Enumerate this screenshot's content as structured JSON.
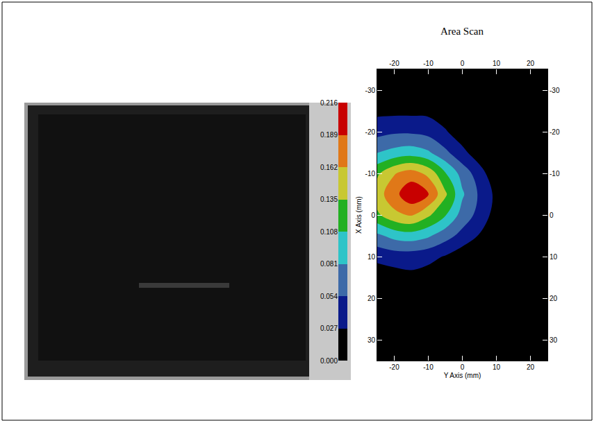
{
  "chart_data": {
    "type": "contour",
    "title": "Area Scan",
    "xlabel": "Y Axis (mm)",
    "ylabel": "X Axis (mm)",
    "x": [
      -25,
      -20,
      -15,
      -10,
      -5,
      0,
      5,
      10,
      15,
      20,
      25
    ],
    "y": [
      -35,
      -30,
      -25,
      -20,
      -15,
      -10,
      -5,
      0,
      5,
      10,
      15,
      20,
      25,
      30,
      35
    ],
    "z": [
      [
        0,
        0,
        0,
        0,
        0,
        0,
        0,
        0,
        0,
        0,
        0
      ],
      [
        0,
        0,
        0,
        0,
        0,
        0,
        0,
        0,
        0,
        0,
        0
      ],
      [
        0.02,
        0.02,
        0.02,
        0.02,
        0.01,
        0,
        0,
        0,
        0,
        0,
        0
      ],
      [
        0.045,
        0.05,
        0.05,
        0.045,
        0.03,
        0.01,
        0,
        0,
        0,
        0,
        0
      ],
      [
        0.08,
        0.09,
        0.095,
        0.085,
        0.06,
        0.035,
        0.01,
        0,
        0,
        0,
        0
      ],
      [
        0.13,
        0.16,
        0.175,
        0.155,
        0.11,
        0.07,
        0.04,
        0.005,
        0,
        0,
        0
      ],
      [
        0.15,
        0.18,
        0.21,
        0.19,
        0.14,
        0.085,
        0.05,
        0.02,
        0,
        0,
        0
      ],
      [
        0.13,
        0.155,
        0.165,
        0.14,
        0.11,
        0.07,
        0.045,
        0.015,
        0,
        0,
        0
      ],
      [
        0.075,
        0.09,
        0.095,
        0.085,
        0.065,
        0.045,
        0.025,
        0.005,
        0,
        0,
        0
      ],
      [
        0.035,
        0.04,
        0.04,
        0.035,
        0.025,
        0.01,
        0,
        0,
        0,
        0,
        0
      ],
      [
        0.01,
        0.015,
        0.02,
        0.015,
        0.01,
        0,
        0,
        0,
        0,
        0,
        0
      ],
      [
        0,
        0,
        0,
        0,
        0,
        0,
        0,
        0,
        0,
        0,
        0
      ],
      [
        0,
        0,
        0,
        0,
        0,
        0,
        0,
        0,
        0,
        0,
        0
      ],
      [
        0,
        0,
        0,
        0,
        0,
        0,
        0,
        0,
        0,
        0,
        0
      ],
      [
        0,
        0,
        0,
        0,
        0,
        0,
        0,
        0,
        0,
        0,
        0
      ]
    ],
    "xlim": [
      -25,
      25
    ],
    "xticks": [
      -20,
      -10,
      0,
      10,
      20
    ],
    "ylim": [
      35,
      -35
    ],
    "yticks": [
      -30,
      -20,
      -10,
      0,
      10,
      20,
      30
    ],
    "zlim": [
      0,
      0.216
    ],
    "zticks": [
      {
        "value": 0,
        "label": "0.000"
      },
      0.027,
      0.054,
      0.081,
      0.108,
      0.135,
      0.162,
      0.189,
      0.216
    ],
    "colors": [
      "#000000",
      "#0a1a8a",
      "#3d6aa8",
      "#2ec4c8",
      "#22b022",
      "#c8c832",
      "#e07818",
      "#c80000"
    ],
    "grid": true
  }
}
